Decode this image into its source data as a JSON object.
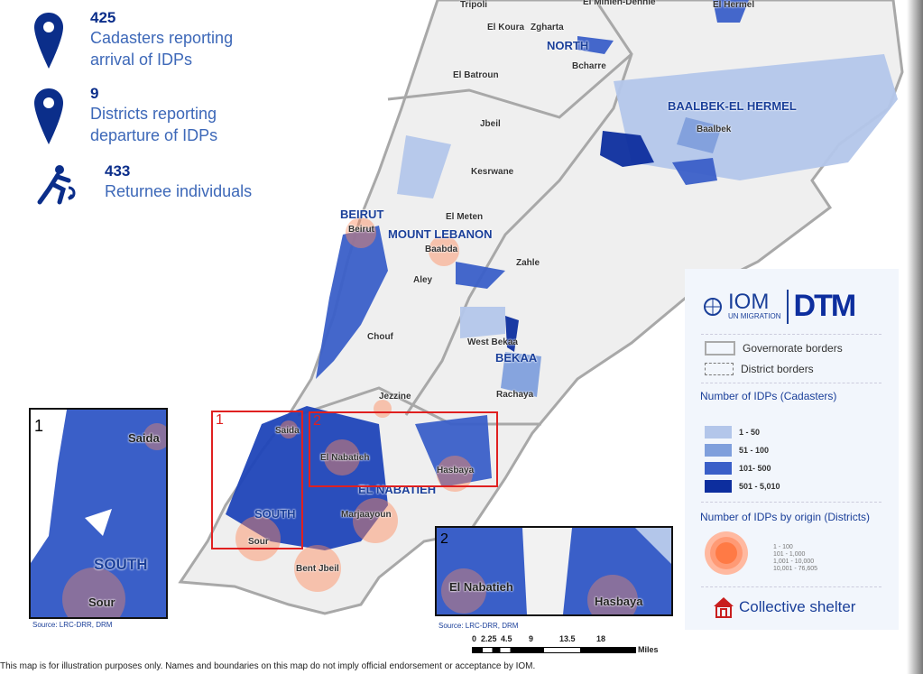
{
  "stats": [
    {
      "icon": "map-pin-icon",
      "number": "425",
      "label_lines": [
        "Cadasters reporting",
        "arrival of IDPs"
      ]
    },
    {
      "icon": "map-pin-icon",
      "number": "9",
      "label_lines": [
        "Districts reporting",
        "departure of IDPs"
      ]
    },
    {
      "icon": "returnee-runner-icon",
      "number": "",
      "label_lines": [
        "433",
        "Returnee individuals"
      ]
    }
  ],
  "governorates": [
    "NORTH",
    "BAALBEK-EL HERMEL",
    "BEIRUT",
    "MOUNT LEBANON",
    "BEKAA",
    "EL NABATIEH",
    "SOUTH"
  ],
  "districts": [
    "Tripoli",
    "El Minieh-Dennie",
    "El Hermel",
    "El Koura",
    "Zgharta",
    "Bcharre",
    "El Batroun",
    "Jbeil",
    "Baalbek",
    "Kesrwane",
    "El Meten",
    "Beirut",
    "Baabda",
    "Aley",
    "Zahle",
    "Chouf",
    "West Bekaa",
    "Rachaya",
    "Jezzine",
    "Saida",
    "El Nabatieh",
    "Hasbaya",
    "Marjaayoun",
    "Sour",
    "Bent Jbeil"
  ],
  "insets": [
    {
      "number": "1",
      "labels": [
        "Saida",
        "SOUTH",
        "Sour"
      ],
      "source": "Source: LRC-DRR, DRM"
    },
    {
      "number": "2",
      "labels": [
        "El Nabatieh",
        "Hasbaya"
      ],
      "source": "Source: LRC-DRR, DRM"
    }
  ],
  "legend": {
    "logo_iom": "IOM",
    "logo_sub": "UN MIGRATION",
    "logo_dtm": "DTM",
    "borders": [
      "Governorate borders",
      "District borders"
    ],
    "cadasters_title": "Number of IDPs (Cadasters)",
    "classes": [
      {
        "label": "1 - 50",
        "color": "#b3c6ea"
      },
      {
        "label": "51 - 100",
        "color": "#7f9fdc"
      },
      {
        "label": "101- 500",
        "color": "#3a5fc8"
      },
      {
        "label": "501 - 5,010",
        "color": "#0d2e9e"
      }
    ],
    "origin_title": "Number of IDPs by origin (Districts)",
    "origin_classes": [
      "1 - 100",
      "101 - 1,000",
      "1,001 - 10,000",
      "10,001 - 76,605"
    ],
    "shelter": "Collective shelter"
  },
  "scale": {
    "ticks": [
      "0",
      "2.25",
      "4.5",
      "9",
      "13.5",
      "18"
    ],
    "unit": "Miles"
  },
  "disclaimer": "This map is for illustration purposes only. Names and boundaries on this map do not imply official endorsement or acceptance by IOM."
}
